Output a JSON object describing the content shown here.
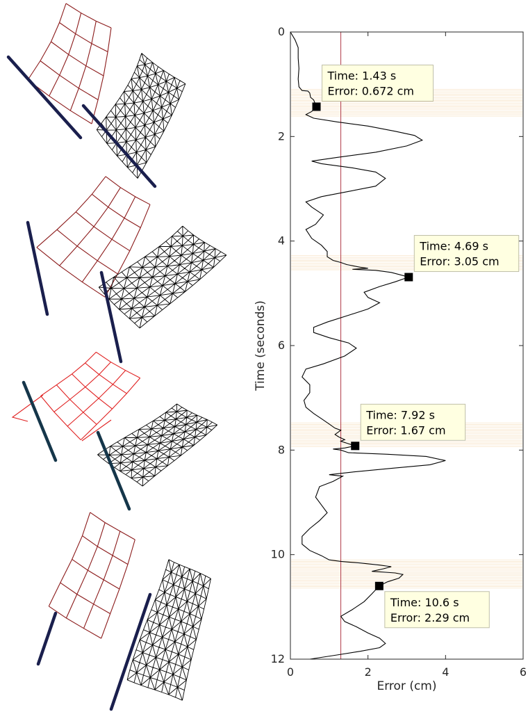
{
  "chart_data": {
    "type": "line",
    "orientation": "vertical-time",
    "xlabel": "Error (cm)",
    "ylabel": "Time (seconds)",
    "xlim": [
      0,
      6
    ],
    "ylim": [
      0,
      12
    ],
    "y_reversed": true,
    "x_ticks": [
      "0",
      "2",
      "4",
      "6"
    ],
    "y_ticks": [
      "0",
      "2",
      "4",
      "6",
      "8",
      "10",
      "12"
    ],
    "threshold_error": 1.3,
    "error_trace": [
      [
        0.0,
        0.0
      ],
      [
        0.12,
        0.15
      ],
      [
        0.2,
        0.3
      ],
      [
        0.2,
        0.5
      ],
      [
        0.22,
        0.7
      ],
      [
        0.2,
        0.9
      ],
      [
        0.22,
        1.05
      ],
      [
        0.3,
        1.12
      ],
      [
        0.45,
        1.13
      ],
      [
        0.5,
        1.17
      ],
      [
        0.52,
        1.25
      ],
      [
        0.6,
        1.3
      ],
      [
        0.67,
        1.43
      ],
      [
        0.55,
        1.52
      ],
      [
        0.4,
        1.58
      ],
      [
        0.6,
        1.65
      ],
      [
        1.2,
        1.72
      ],
      [
        2.0,
        1.8
      ],
      [
        2.7,
        1.9
      ],
      [
        3.2,
        1.98
      ],
      [
        3.4,
        2.07
      ],
      [
        3.0,
        2.18
      ],
      [
        2.2,
        2.3
      ],
      [
        1.2,
        2.4
      ],
      [
        0.55,
        2.47
      ],
      [
        0.8,
        2.52
      ],
      [
        1.6,
        2.6
      ],
      [
        2.2,
        2.68
      ],
      [
        2.45,
        2.8
      ],
      [
        2.2,
        2.95
      ],
      [
        1.5,
        3.05
      ],
      [
        0.8,
        3.15
      ],
      [
        0.4,
        3.25
      ],
      [
        0.55,
        3.35
      ],
      [
        0.85,
        3.5
      ],
      [
        0.65,
        3.68
      ],
      [
        0.4,
        3.78
      ],
      [
        0.55,
        3.95
      ],
      [
        0.8,
        4.08
      ],
      [
        0.95,
        4.2
      ],
      [
        0.95,
        4.3
      ],
      [
        1.1,
        4.37
      ],
      [
        1.3,
        4.41
      ],
      [
        1.45,
        4.45
      ],
      [
        1.8,
        4.5
      ],
      [
        2.0,
        4.52
      ],
      [
        1.6,
        4.54
      ],
      [
        2.2,
        4.56
      ],
      [
        2.6,
        4.6
      ],
      [
        3.05,
        4.69
      ],
      [
        2.7,
        4.78
      ],
      [
        2.3,
        4.87
      ],
      [
        1.9,
        4.98
      ],
      [
        2.0,
        5.08
      ],
      [
        2.3,
        5.18
      ],
      [
        2.0,
        5.3
      ],
      [
        1.5,
        5.42
      ],
      [
        0.95,
        5.55
      ],
      [
        0.6,
        5.65
      ],
      [
        0.6,
        5.75
      ],
      [
        1.0,
        5.85
      ],
      [
        1.5,
        5.95
      ],
      [
        1.7,
        6.05
      ],
      [
        1.4,
        6.2
      ],
      [
        0.85,
        6.35
      ],
      [
        0.4,
        6.45
      ],
      [
        0.3,
        6.6
      ],
      [
        0.5,
        6.75
      ],
      [
        0.5,
        6.9
      ],
      [
        0.35,
        7.05
      ],
      [
        0.4,
        7.18
      ],
      [
        0.6,
        7.3
      ],
      [
        0.8,
        7.4
      ],
      [
        1.0,
        7.5
      ],
      [
        1.15,
        7.58
      ],
      [
        1.3,
        7.62
      ],
      [
        1.15,
        7.7
      ],
      [
        1.25,
        7.75
      ],
      [
        1.4,
        7.8
      ],
      [
        1.3,
        7.83
      ],
      [
        1.67,
        7.92
      ],
      [
        1.4,
        7.96
      ],
      [
        1.1,
        7.98
      ],
      [
        1.3,
        8.0
      ],
      [
        1.5,
        8.05
      ],
      [
        2.5,
        8.08
      ],
      [
        3.5,
        8.12
      ],
      [
        4.0,
        8.2
      ],
      [
        3.6,
        8.28
      ],
      [
        2.6,
        8.35
      ],
      [
        1.6,
        8.42
      ],
      [
        1.0,
        8.47
      ],
      [
        1.35,
        8.5
      ],
      [
        1.1,
        8.6
      ],
      [
        0.75,
        8.7
      ],
      [
        0.65,
        8.9
      ],
      [
        0.8,
        9.05
      ],
      [
        0.95,
        9.2
      ],
      [
        0.75,
        9.35
      ],
      [
        0.5,
        9.5
      ],
      [
        0.3,
        9.65
      ],
      [
        0.3,
        9.8
      ],
      [
        0.5,
        9.92
      ],
      [
        0.8,
        10.02
      ],
      [
        1.0,
        10.1
      ],
      [
        1.3,
        10.13
      ],
      [
        1.8,
        10.16
      ],
      [
        2.3,
        10.2
      ],
      [
        2.6,
        10.23
      ],
      [
        2.4,
        10.27
      ],
      [
        2.1,
        10.32
      ],
      [
        2.7,
        10.35
      ],
      [
        2.9,
        10.38
      ],
      [
        2.8,
        10.45
      ],
      [
        2.5,
        10.52
      ],
      [
        2.29,
        10.6
      ],
      [
        2.1,
        10.75
      ],
      [
        1.9,
        10.9
      ],
      [
        1.6,
        11.05
      ],
      [
        1.3,
        11.18
      ],
      [
        1.4,
        11.28
      ],
      [
        1.7,
        11.38
      ],
      [
        2.0,
        11.5
      ],
      [
        2.3,
        11.6
      ],
      [
        2.45,
        11.7
      ],
      [
        2.3,
        11.78
      ],
      [
        1.8,
        11.85
      ],
      [
        1.2,
        11.92
      ],
      [
        0.5,
        12.0
      ]
    ],
    "highlight_bands": [
      [
        1.1,
        1.62
      ],
      [
        4.28,
        4.55
      ],
      [
        7.48,
        7.95
      ],
      [
        10.1,
        10.65
      ]
    ],
    "datatips": [
      {
        "time": 1.43,
        "error": 0.672,
        "time_text": "Time: 1.43 s",
        "error_text": "Error: 0.672 cm",
        "placement": "upper-right"
      },
      {
        "time": 4.69,
        "error": 3.05,
        "time_text": "Time: 4.69 s",
        "error_text": "Error: 3.05 cm",
        "placement": "upper-right"
      },
      {
        "time": 7.92,
        "error": 1.67,
        "time_text": "Time: 7.92 s",
        "error_text": "Error: 1.67 cm",
        "placement": "upper-right"
      },
      {
        "time": 10.6,
        "error": 2.29,
        "time_text": "Time: 10.6 s",
        "error_text": "Error: 2.29 cm",
        "placement": "lower-right"
      }
    ],
    "colors": {
      "trace": "#000000",
      "threshold": "#b03a48",
      "band": "#f3d4a6",
      "marker": "#000000",
      "datatip_fill": "#ffffe1",
      "datatip_border": "#bfbfa8"
    }
  },
  "snapshots": {
    "count": 4,
    "colors": {
      "reference_mesh": "#8b1a1a",
      "reference_mesh_bright": "#e02020",
      "deformed_mesh": "#000000",
      "rod": "#1a1f4d",
      "rod_teal": "#15364a"
    }
  }
}
